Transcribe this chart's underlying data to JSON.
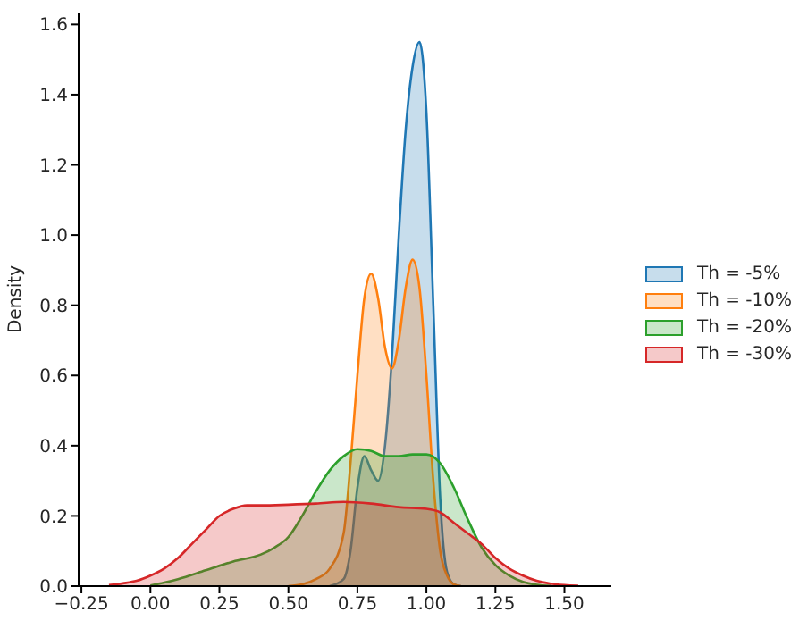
{
  "chart_data": {
    "type": "area",
    "ylabel": "Density",
    "legend": "right",
    "xlim": [
      -0.26,
      1.67
    ],
    "ylim": [
      0,
      1.634
    ],
    "xticks": [
      {
        "value": -0.25,
        "label": "−0.25"
      },
      {
        "value": 0,
        "label": "0.00"
      },
      {
        "value": 0.25,
        "label": "0.25"
      },
      {
        "value": 0.5,
        "label": "0.50"
      },
      {
        "value": 0.75,
        "label": "0.75"
      },
      {
        "value": 1,
        "label": "1.00"
      },
      {
        "value": 1.25,
        "label": "1.25"
      },
      {
        "value": 1.5,
        "label": "1.50"
      }
    ],
    "yticks": [
      {
        "value": 0,
        "label": "0.0"
      },
      {
        "value": 0.2,
        "label": "0.2"
      },
      {
        "value": 0.4,
        "label": "0.4"
      },
      {
        "value": 0.6,
        "label": "0.6"
      },
      {
        "value": 0.8,
        "label": "0.8"
      },
      {
        "value": 1,
        "label": "1.0"
      },
      {
        "value": 1.2,
        "label": "1.2"
      },
      {
        "value": 1.4,
        "label": "1.4"
      },
      {
        "value": 1.6,
        "label": "1.6"
      }
    ],
    "series": [
      {
        "name": "Th = -5%",
        "color": "#1f77b4",
        "x": [
          0.65,
          0.7,
          0.725,
          0.75,
          0.775,
          0.8,
          0.825,
          0.85,
          0.875,
          0.9,
          0.925,
          0.95,
          0.975,
          1.0,
          1.025,
          1.05,
          1.075,
          1.1,
          1.125
        ],
        "values": [
          0,
          0.02,
          0.1,
          0.28,
          0.37,
          0.33,
          0.3,
          0.4,
          0.65,
          1.0,
          1.3,
          1.48,
          1.55,
          1.35,
          0.8,
          0.25,
          0.04,
          0.005,
          0
        ]
      },
      {
        "name": "Th = -10%",
        "color": "#ff7f0e",
        "x": [
          0.5,
          0.55,
          0.6,
          0.65,
          0.7,
          0.725,
          0.75,
          0.775,
          0.8,
          0.825,
          0.85,
          0.875,
          0.9,
          0.925,
          0.95,
          0.975,
          1.0,
          1.025,
          1.05,
          1.075,
          1.1,
          1.125
        ],
        "values": [
          0,
          0.005,
          0.02,
          0.05,
          0.15,
          0.35,
          0.6,
          0.82,
          0.89,
          0.82,
          0.68,
          0.62,
          0.7,
          0.85,
          0.93,
          0.85,
          0.6,
          0.3,
          0.1,
          0.03,
          0.005,
          0
        ]
      },
      {
        "name": "Th = -20%",
        "color": "#2ca02c",
        "x": [
          0,
          0.05,
          0.1,
          0.2,
          0.3,
          0.4,
          0.45,
          0.5,
          0.55,
          0.6,
          0.65,
          0.7,
          0.75,
          0.8,
          0.85,
          0.9,
          0.95,
          1.0,
          1.05,
          1.1,
          1.15,
          1.2,
          1.25,
          1.3,
          1.35,
          1.4,
          1.45
        ],
        "values": [
          0.002,
          0.01,
          0.02,
          0.045,
          0.07,
          0.09,
          0.11,
          0.14,
          0.2,
          0.27,
          0.33,
          0.37,
          0.39,
          0.385,
          0.37,
          0.37,
          0.375,
          0.375,
          0.35,
          0.28,
          0.19,
          0.11,
          0.06,
          0.03,
          0.012,
          0.004,
          0.001
        ]
      },
      {
        "name": "Th = -30%",
        "color": "#d62728",
        "x": [
          -0.15,
          -0.1,
          -0.05,
          0,
          0.05,
          0.1,
          0.15,
          0.2,
          0.25,
          0.3,
          0.35,
          0.4,
          0.5,
          0.6,
          0.7,
          0.8,
          0.9,
          1.0,
          1.05,
          1.1,
          1.15,
          1.2,
          1.25,
          1.3,
          1.35,
          1.4,
          1.45,
          1.5,
          1.55
        ],
        "values": [
          0.003,
          0.008,
          0.015,
          0.03,
          0.05,
          0.08,
          0.12,
          0.16,
          0.2,
          0.22,
          0.23,
          0.23,
          0.232,
          0.235,
          0.24,
          0.235,
          0.225,
          0.22,
          0.21,
          0.18,
          0.15,
          0.12,
          0.08,
          0.05,
          0.03,
          0.015,
          0.007,
          0.003,
          0.001
        ]
      }
    ]
  }
}
